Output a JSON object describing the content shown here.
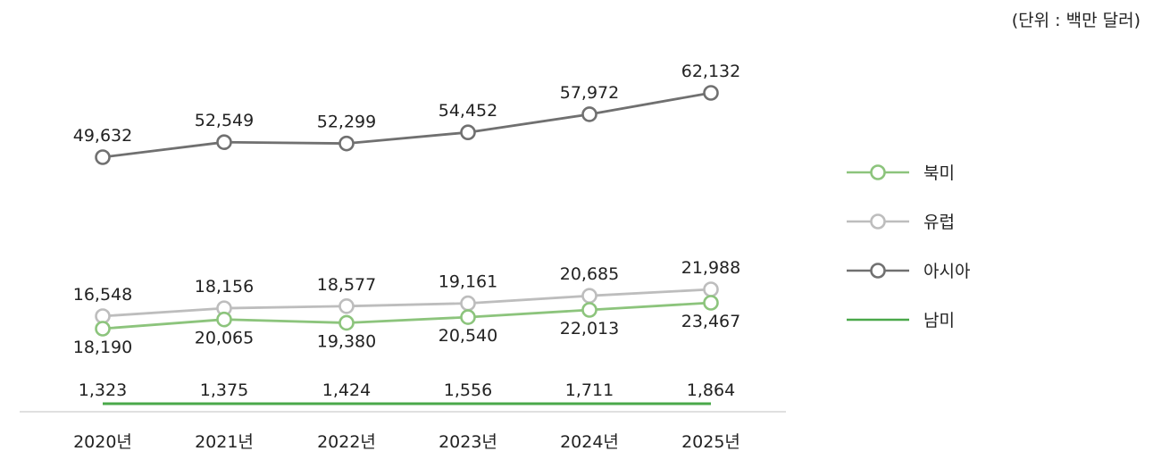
{
  "unit_label": "(단위 : 백만 달러)",
  "chart_data": {
    "type": "line",
    "categories": [
      "2020년",
      "2021년",
      "2022년",
      "2023년",
      "2024년",
      "2025년"
    ],
    "series": [
      {
        "name": "북미",
        "values": [
          18190,
          20065,
          19380,
          20540,
          22013,
          23467
        ],
        "color": "#8cc47c",
        "marker": true
      },
      {
        "name": "유럽",
        "values": [
          16548,
          18156,
          18577,
          19161,
          20685,
          21988
        ],
        "color": "#bdbdbd",
        "marker": true
      },
      {
        "name": "아시아",
        "values": [
          49632,
          52549,
          52299,
          54452,
          57972,
          62132
        ],
        "color": "#707070",
        "marker": true
      },
      {
        "name": "남미",
        "values": [
          1323,
          1375,
          1424,
          1556,
          1711,
          1864
        ],
        "color": "#4aa84a",
        "marker": false
      }
    ],
    "value_labels": {
      "북미": [
        "18,190",
        "20,065",
        "19,380",
        "20,540",
        "22,013",
        "23,467"
      ],
      "유럽": [
        "16,548",
        "18,156",
        "18,577",
        "19,161",
        "20,685",
        "21,988"
      ],
      "아시아": [
        "49,632",
        "52,549",
        "52,299",
        "54,452",
        "57,972",
        "62,132"
      ],
      "남미": [
        "1,323",
        "1,375",
        "1,424",
        "1,556",
        "1,711",
        "1,864"
      ]
    },
    "legend_position": "right",
    "grid": false
  }
}
